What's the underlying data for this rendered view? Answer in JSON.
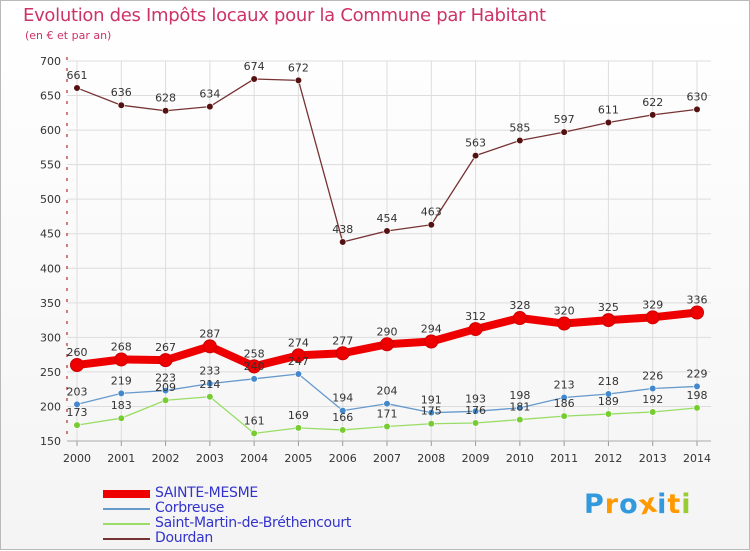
{
  "header": {
    "title": "Evolution des Impôts locaux pour la Commune par Habitant",
    "subtitle": "(en € et par an)"
  },
  "colors": {
    "title": "#cc3366",
    "axis": "#aa0000",
    "grid": "#dddddd",
    "legend_text": "#3333cc"
  },
  "chart_data": {
    "type": "line",
    "x": [
      2000,
      2001,
      2002,
      2003,
      2004,
      2005,
      2006,
      2007,
      2008,
      2009,
      2010,
      2011,
      2012,
      2013,
      2014
    ],
    "ylim": [
      150,
      700
    ],
    "yticks": [
      150,
      200,
      250,
      300,
      350,
      400,
      450,
      500,
      550,
      600,
      650,
      700
    ],
    "grid": true,
    "legend_position": "bottom-left",
    "series": [
      {
        "name": "SAINTE-MESME",
        "color": "#ee0000",
        "marker_color": "#ee0000",
        "emphasis": true,
        "values": [
          260,
          268,
          267,
          287,
          258,
          274,
          277,
          290,
          294,
          312,
          328,
          320,
          325,
          329,
          336
        ]
      },
      {
        "name": "Corbreuse",
        "color": "#6699cc",
        "marker_color": "#4488cc",
        "emphasis": false,
        "values": [
          203,
          219,
          223,
          233,
          240,
          247,
          194,
          204,
          191,
          193,
          198,
          213,
          218,
          226,
          229
        ],
        "labels": [
          "203",
          "219",
          "223",
          "233",
          "240",
          "247",
          "194",
          "204",
          "191",
          "193",
          "198",
          "213",
          "218",
          "226",
          "229"
        ]
      },
      {
        "name": "Saint-Martin-de-Bréthencourt",
        "color": "#99dd66",
        "marker_color": "#77cc33",
        "emphasis": false,
        "values": [
          173,
          183,
          209,
          214,
          161,
          169,
          166,
          171,
          175,
          176,
          181,
          186,
          189,
          192,
          198
        ]
      },
      {
        "name": "Dourdan",
        "color": "#773333",
        "marker_color": "#551111",
        "emphasis": false,
        "values": [
          661,
          636,
          628,
          634,
          674,
          672,
          438,
          454,
          463,
          563,
          585,
          597,
          611,
          622,
          630
        ]
      }
    ]
  },
  "logo": {
    "text": "Proxiti",
    "letters": [
      "P",
      "r",
      "o",
      "x",
      "i",
      "t",
      "i"
    ],
    "colors": [
      "#3399dd",
      "#ff9900",
      "#3399dd",
      "#ff9900",
      "#3399dd",
      "#ff9900",
      "#99cc33"
    ]
  }
}
